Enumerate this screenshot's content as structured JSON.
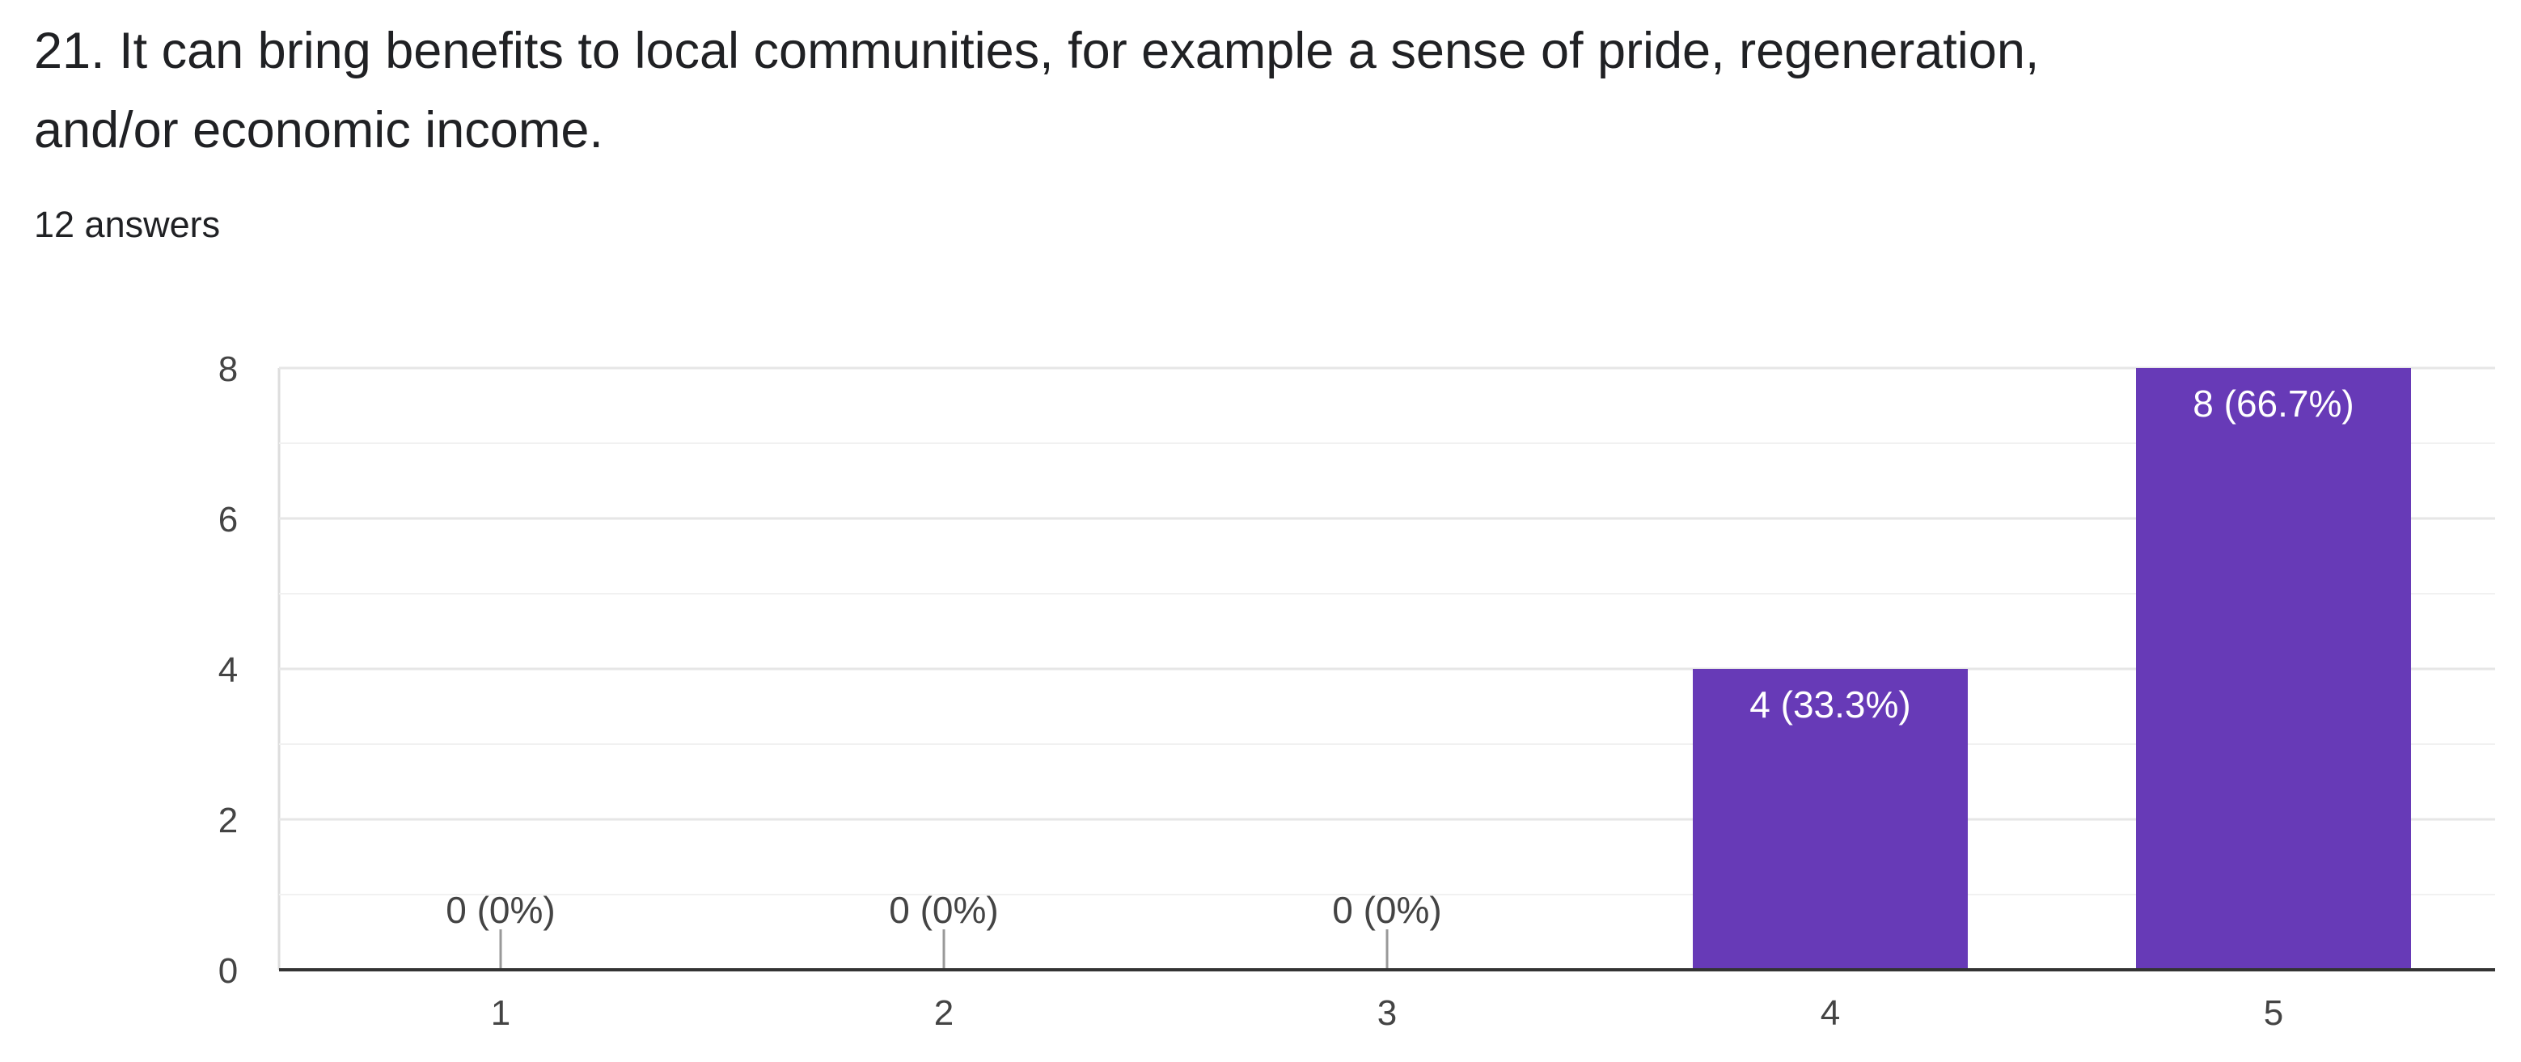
{
  "question": {
    "title": "21. It can bring benefits to local communities, for example a sense of pride, regeneration, and/or economic income.",
    "answers_label": "12 answers"
  },
  "colors": {
    "bar": "#673ab7",
    "grid": "#e8e8e8",
    "axis": "#333333",
    "text": "#202124"
  },
  "chart_data": {
    "type": "bar",
    "title": "",
    "xlabel": "",
    "ylabel": "",
    "categories": [
      "1",
      "2",
      "3",
      "4",
      "5"
    ],
    "values": [
      0,
      0,
      0,
      4,
      8
    ],
    "data_labels": [
      "0 (0%)",
      "0 (0%)",
      "0 (0%)",
      "4 (33.3%)",
      "8 (66.7%)"
    ],
    "y_ticks": [
      0,
      2,
      4,
      6,
      8
    ],
    "ylim": [
      0,
      8
    ],
    "grid": true
  }
}
